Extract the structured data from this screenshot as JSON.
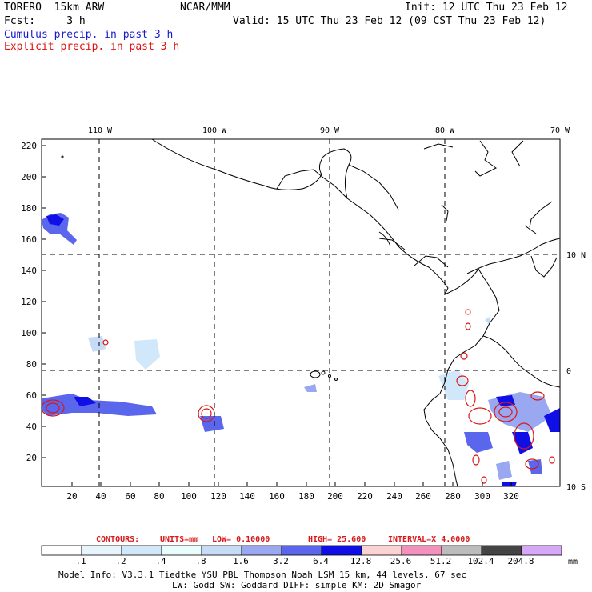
{
  "header": {
    "model": "TORERO  15km ARW",
    "org": "NCAR/MMM",
    "init": "Init: 12 UTC Thu 23 Feb 12",
    "fcst": "Fcst:     3 h",
    "valid": "Valid: 15 UTC Thu 23 Feb 12 (09 CST Thu 23 Feb 12)",
    "line_cumulus": "Cumulus precip. in past 3 h",
    "line_explicit": "Explicit precip. in past 3 h"
  },
  "colors": {
    "cumulus": "#1a1acc",
    "explicit": "#e01010",
    "contour": "#d81818",
    "grid": "#000000"
  },
  "top_axis": {
    "ticks": [
      "110 W",
      "100 W",
      "90 W",
      "80 W",
      "70 W"
    ]
  },
  "right_axis": {
    "ticks": [
      "10 N",
      "0",
      "10 S"
    ]
  },
  "left_axis": {
    "ticks": [
      "220",
      "200",
      "180",
      "160",
      "140",
      "120",
      "100",
      "80",
      "60",
      "40",
      "20"
    ]
  },
  "bottom_axis": {
    "ticks": [
      "20",
      "40",
      "60",
      "80",
      "100",
      "120",
      "140",
      "160",
      "180",
      "200",
      "220",
      "240",
      "260",
      "280",
      "300",
      "320"
    ]
  },
  "contours_info": {
    "label": "CONTOURS:",
    "units": "UNITS=mm",
    "low": "LOW= 0.10000",
    "high": "HIGH=  25.600",
    "interval": "INTERVAL=X  4.0000"
  },
  "colorbar": {
    "labels": [
      ".1",
      ".2",
      ".4",
      ".8",
      "1.6",
      "3.2",
      "6.4",
      "12.8",
      "25.6",
      "51.2",
      "102.4",
      "204.8"
    ],
    "unit": "mm",
    "colors": [
      "#ffffff",
      "#e8f4fc",
      "#d0e8fa",
      "#eafcfc",
      "#c6dcf6",
      "#9aa8f2",
      "#5a66ec",
      "#1010e6",
      "#fcd2d2",
      "#f490bc",
      "#bcbcbc",
      "#444444",
      "#d8a8f8"
    ]
  },
  "footer": {
    "line1": "Model Info: V3.3.1      Tiedtke YSU PBL  Thompson    Noah LSM  15 km,    44 levels,   67 sec",
    "line2": "LW: Godd SW: Goddard DIFF: simple KM: 2D Smagor"
  }
}
